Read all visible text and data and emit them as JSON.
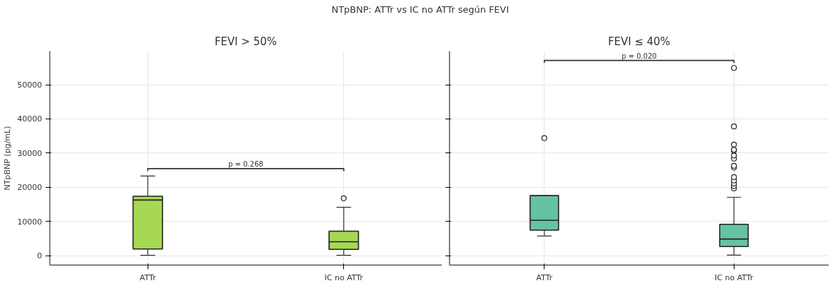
{
  "chart_data": [
    {
      "type": "box",
      "title": "NTpBNP: ATTr vs IC no ATTr según FEVI",
      "subtitle": "FEVI > 50%",
      "ylabel": "NTpBNP (pg/mL)",
      "categories": [
        "ATTr",
        "IC no ATTr"
      ],
      "color": "#a6d854",
      "boxes": [
        {
          "low": 150,
          "q1": 2000,
          "median": 16300,
          "q3": 17400,
          "high": 23300
        },
        {
          "low": 150,
          "q1": 1900,
          "median": 4100,
          "q3": 7200,
          "high": 14200,
          "outliers": [
            16800
          ]
        }
      ],
      "ylim": [
        -2700,
        59800
      ],
      "yticks": [
        0,
        10000,
        20000,
        30000,
        40000,
        50000
      ],
      "grid": true,
      "annotations": [
        "p = 0.268"
      ]
    },
    {
      "type": "box",
      "subtitle": "FEVI ≤ 40%",
      "categories": [
        "ATTr",
        "IC no ATTr"
      ],
      "color": "#66c2a5",
      "boxes": [
        {
          "low": 5800,
          "q1": 7500,
          "median": 10400,
          "q3": 17600,
          "high": 17600,
          "outliers": [
            34400
          ]
        },
        {
          "low": 200,
          "q1": 2700,
          "median": 4900,
          "q3": 9200,
          "high": 17100,
          "outliers": [
            19700,
            20400,
            21100,
            22000,
            23000,
            25800,
            26300,
            28400,
            29300,
            30700,
            31000,
            32500,
            37800,
            54900
          ]
        }
      ],
      "ylim": [
        -2700,
        59800
      ],
      "yticks": [
        0,
        10000,
        20000,
        30000,
        40000,
        50000
      ],
      "grid": true,
      "tick_labels": "x",
      "annotations": [
        "p = 0.020"
      ]
    }
  ]
}
